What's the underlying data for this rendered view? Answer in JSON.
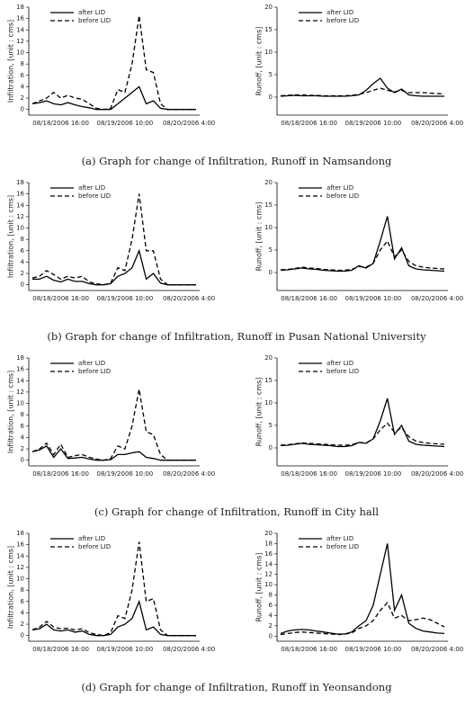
{
  "chart_data": [
    {
      "type": "line",
      "ylabel": "Infiltration, [unit : cms]",
      "ylim": [
        -1,
        18
      ],
      "yticks": [
        0,
        2,
        4,
        6,
        8,
        10,
        12,
        14,
        16,
        18
      ],
      "categories": [
        null,
        null,
        null,
        null,
        "08/18/2006 16:00",
        null,
        null,
        null,
        null,
        null,
        null,
        null,
        null,
        "08/19/2006 10:00",
        null,
        null,
        null,
        null,
        null,
        null,
        null,
        null,
        "08/20/2006 4:00",
        null
      ],
      "series": [
        {
          "name": "after LID",
          "color": "#000000",
          "style": "solid",
          "values": [
            1,
            1.2,
            1.5,
            1,
            0.8,
            1.2,
            0.8,
            0.5,
            0.3,
            0,
            0,
            0,
            1,
            2,
            3,
            4,
            1,
            1.5,
            0.2,
            0,
            0,
            0,
            0,
            0
          ]
        },
        {
          "name": "before LID",
          "color": "#000000",
          "style": "dashed",
          "values": [
            1,
            1.5,
            2,
            3,
            2,
            2.5,
            2,
            1.8,
            1,
            0.2,
            0,
            0.2,
            3.5,
            3,
            8,
            16.5,
            7,
            6.5,
            1,
            0,
            0,
            0,
            0,
            0
          ]
        }
      ]
    },
    {
      "type": "line",
      "ylabel": "Runoff, [unit : cms]",
      "ylim": [
        -4,
        20
      ],
      "yticks": [
        0,
        5,
        10,
        15,
        20
      ],
      "categories": [
        null,
        null,
        null,
        null,
        "08/18/2006 16:00",
        null,
        null,
        null,
        null,
        null,
        null,
        null,
        null,
        "08/19/2006 10:00",
        null,
        null,
        null,
        null,
        null,
        null,
        null,
        null,
        "08/20/2006 4:00",
        null
      ],
      "series": [
        {
          "name": "after LID",
          "color": "#000000",
          "style": "solid",
          "values": [
            0.2,
            0.3,
            0.4,
            0.3,
            0.3,
            0.3,
            0.2,
            0.2,
            0.2,
            0.2,
            0.3,
            0.5,
            1.5,
            3,
            4.2,
            2,
            1,
            1.8,
            0.5,
            0.3,
            0.2,
            0.2,
            0.2,
            0.2
          ]
        },
        {
          "name": "before LID",
          "color": "#000000",
          "style": "dashed",
          "values": [
            0.3,
            0.4,
            0.5,
            0.5,
            0.4,
            0.4,
            0.3,
            0.3,
            0.3,
            0.3,
            0.4,
            0.6,
            1,
            1.5,
            2,
            1.5,
            1.2,
            1.5,
            1,
            1,
            1,
            0.9,
            0.8,
            0.7
          ]
        }
      ]
    },
    {
      "type": "line",
      "ylabel": "Infiltration, [unit : cms]",
      "ylim": [
        -1,
        18
      ],
      "yticks": [
        0,
        2,
        4,
        6,
        8,
        10,
        12,
        14,
        16,
        18
      ],
      "categories": [
        null,
        null,
        null,
        null,
        "08/18/2006 16:00",
        null,
        null,
        null,
        null,
        null,
        null,
        null,
        null,
        "08/19/2006 10:00",
        null,
        null,
        null,
        null,
        null,
        null,
        null,
        null,
        "08/20/2006 4:00",
        null
      ],
      "series": [
        {
          "name": "after LID",
          "color": "#000000",
          "style": "solid",
          "values": [
            1,
            1,
            1.5,
            0.8,
            0.5,
            1,
            0.6,
            0.6,
            0.2,
            0,
            0,
            0.2,
            1.5,
            2,
            3,
            6,
            1,
            2,
            0.3,
            0,
            0,
            0,
            0,
            0
          ]
        },
        {
          "name": "before LID",
          "color": "#000000",
          "style": "dashed",
          "values": [
            1.2,
            1.5,
            2.5,
            1.8,
            1,
            1.5,
            1.2,
            1.5,
            0.5,
            0.2,
            0,
            0.3,
            3,
            2.5,
            8,
            16,
            6,
            6,
            1,
            0,
            0,
            0,
            0,
            0
          ]
        }
      ]
    },
    {
      "type": "line",
      "ylabel": "Runoff, [unit : cms]",
      "ylim": [
        -4,
        20
      ],
      "yticks": [
        0,
        5,
        10,
        15,
        20
      ],
      "categories": [
        null,
        null,
        null,
        null,
        "08/18/2006 16:00",
        null,
        null,
        null,
        null,
        null,
        null,
        null,
        null,
        "08/19/2006 10:00",
        null,
        null,
        null,
        null,
        null,
        null,
        null,
        null,
        "08/20/2006 4:00",
        null
      ],
      "series": [
        {
          "name": "after LID",
          "color": "#000000",
          "style": "solid",
          "values": [
            0.5,
            0.6,
            0.8,
            1,
            0.8,
            0.7,
            0.5,
            0.4,
            0.3,
            0.3,
            0.5,
            1.5,
            1,
            2,
            7,
            12.5,
            3,
            5.5,
            1.5,
            0.8,
            0.6,
            0.5,
            0.4,
            0.3
          ]
        },
        {
          "name": "before LID",
          "color": "#000000",
          "style": "dashed",
          "values": [
            0.6,
            0.7,
            0.9,
            1.2,
            1,
            0.9,
            0.7,
            0.6,
            0.5,
            0.5,
            0.7,
            1.3,
            1.2,
            2,
            5,
            7,
            3.5,
            5,
            2.5,
            1.5,
            1.2,
            1,
            0.9,
            0.8
          ]
        }
      ]
    },
    {
      "type": "line",
      "ylabel": "Infiltration, [unit : cms]",
      "ylim": [
        -1,
        18
      ],
      "yticks": [
        0,
        2,
        4,
        6,
        8,
        10,
        12,
        14,
        16,
        18
      ],
      "categories": [
        null,
        null,
        null,
        null,
        "08/18/2006 16:00",
        null,
        null,
        null,
        null,
        null,
        null,
        null,
        null,
        "08/19/2006 10:00",
        null,
        null,
        null,
        null,
        null,
        null,
        null,
        null,
        "08/20/2006 4:00",
        null
      ],
      "series": [
        {
          "name": "after LID",
          "color": "#000000",
          "style": "solid",
          "values": [
            1.5,
            1.8,
            2.5,
            0.5,
            2,
            0.3,
            0.4,
            0.5,
            0.2,
            0,
            0,
            0.1,
            1,
            1,
            1.3,
            1.5,
            0.5,
            0.3,
            0,
            0,
            0,
            0,
            0,
            0
          ]
        },
        {
          "name": "before LID",
          "color": "#000000",
          "style": "dashed",
          "values": [
            1.5,
            2,
            3,
            1,
            2.8,
            0.5,
            0.8,
            1,
            0.5,
            0.2,
            0,
            0.3,
            2.5,
            2,
            6,
            12.5,
            5,
            4.5,
            1,
            0,
            0,
            0,
            0,
            0
          ]
        }
      ]
    },
    {
      "type": "line",
      "ylabel": "Runoff, [unit : cms]",
      "ylim": [
        -4,
        20
      ],
      "yticks": [
        0,
        5,
        10,
        15,
        20
      ],
      "categories": [
        null,
        null,
        null,
        null,
        "08/18/2006 16:00",
        null,
        null,
        null,
        null,
        null,
        null,
        null,
        null,
        "08/19/2006 10:00",
        null,
        null,
        null,
        null,
        null,
        null,
        null,
        null,
        "08/20/2006 4:00",
        null
      ],
      "series": [
        {
          "name": "after LID",
          "color": "#000000",
          "style": "solid",
          "values": [
            0.5,
            0.6,
            0.8,
            1,
            0.8,
            0.7,
            0.6,
            0.5,
            0.3,
            0.3,
            0.5,
            1.2,
            1,
            2,
            6,
            11,
            3,
            5,
            1.5,
            0.8,
            0.6,
            0.5,
            0.4,
            0.3
          ]
        },
        {
          "name": "before LID",
          "color": "#000000",
          "style": "dashed",
          "values": [
            0.6,
            0.7,
            0.9,
            1.1,
            1,
            0.9,
            0.8,
            0.7,
            0.6,
            0.6,
            0.7,
            1.2,
            1.1,
            2,
            4,
            5.5,
            3.5,
            4.5,
            2.5,
            1.5,
            1.2,
            1,
            0.9,
            0.8
          ]
        }
      ]
    },
    {
      "type": "line",
      "ylabel": "Infiltration, [unit : cms]",
      "ylim": [
        -1,
        18
      ],
      "yticks": [
        0,
        2,
        4,
        6,
        8,
        10,
        12,
        14,
        16,
        18
      ],
      "categories": [
        null,
        null,
        null,
        null,
        "08/18/2006 16:00",
        null,
        null,
        null,
        null,
        null,
        null,
        null,
        null,
        "08/19/2006 10:00",
        null,
        null,
        null,
        null,
        null,
        null,
        null,
        null,
        "08/20/2006 4:00",
        null
      ],
      "series": [
        {
          "name": "after LID",
          "color": "#000000",
          "style": "solid",
          "values": [
            1,
            1.2,
            2,
            1,
            0.8,
            1,
            0.6,
            0.8,
            0.2,
            0,
            0,
            0.2,
            1.5,
            2,
            3,
            6,
            1,
            1.5,
            0.2,
            0,
            0,
            0,
            0,
            0
          ]
        },
        {
          "name": "before LID",
          "color": "#000000",
          "style": "dashed",
          "values": [
            1,
            1.5,
            2.5,
            1.5,
            1.2,
            1.3,
            1,
            1.2,
            0.5,
            0.2,
            0,
            0.5,
            3.5,
            3,
            8,
            16.5,
            6,
            6.5,
            1,
            0,
            0,
            0,
            0,
            0
          ]
        }
      ]
    },
    {
      "type": "line",
      "ylabel": "Runoff, [unit : cms]",
      "ylim": [
        -1,
        20
      ],
      "yticks": [
        0,
        2,
        4,
        6,
        8,
        10,
        12,
        14,
        16,
        18,
        20
      ],
      "categories": [
        null,
        null,
        null,
        null,
        "08/18/2006 16:00",
        null,
        null,
        null,
        null,
        null,
        null,
        null,
        null,
        "08/19/2006 10:00",
        null,
        null,
        null,
        null,
        null,
        null,
        null,
        null,
        "08/20/2006 4:00",
        null
      ],
      "series": [
        {
          "name": "after LID",
          "color": "#000000",
          "style": "solid",
          "values": [
            0.5,
            1,
            1.2,
            1.3,
            1.2,
            1,
            0.8,
            0.6,
            0.4,
            0.4,
            0.8,
            2,
            3,
            6,
            12,
            18,
            5,
            8,
            2.5,
            1.5,
            1,
            0.8,
            0.6,
            0.5
          ]
        },
        {
          "name": "before LID",
          "color": "#000000",
          "style": "dashed",
          "values": [
            0.3,
            0.5,
            0.7,
            0.8,
            0.7,
            0.6,
            0.5,
            0.4,
            0.3,
            0.4,
            0.6,
            1.5,
            2,
            3,
            5,
            6.5,
            3.5,
            4,
            3,
            3.2,
            3.5,
            3.2,
            2.5,
            1.8
          ]
        }
      ]
    }
  ],
  "captions": [
    "(a) Graph for change of Infiltration, Runoff in Namsandong",
    "(b) Graph for change of Infiltration, Runoff in Pusan National University",
    "(c) Graph for change of Infiltration, Runoff in City hall",
    "(d) Graph for change of Infiltration, Runoff in Yeonsandong"
  ]
}
